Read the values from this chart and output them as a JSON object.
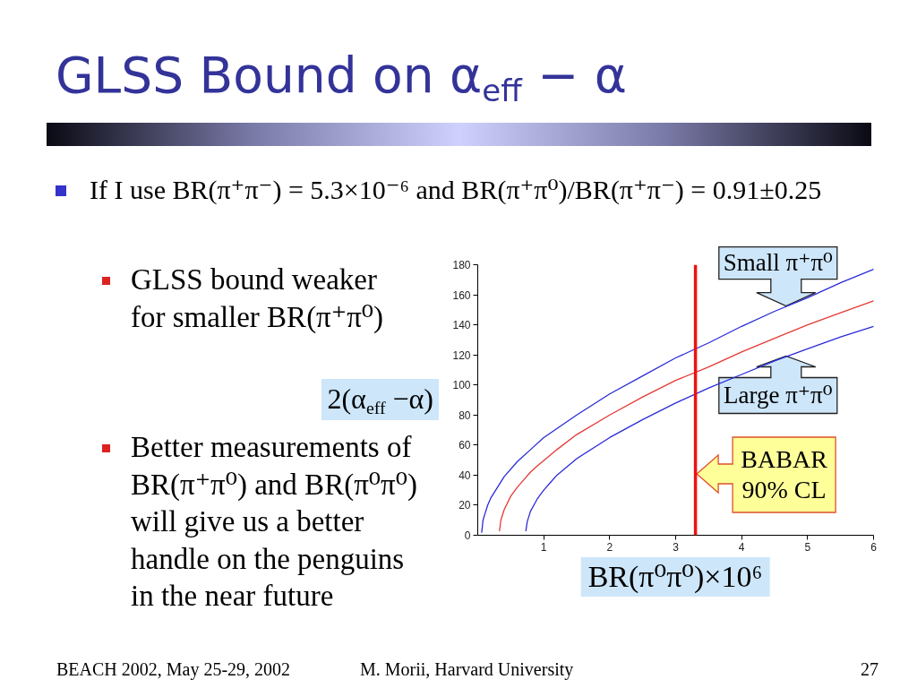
{
  "chart_data": {
    "type": "line",
    "title": "GLSS Bound on α$_{eff}$ − α",
    "xlabel": "BR(π⁰π⁰)×10⁶",
    "ylabel": "2(α$_{eff}$ −α)",
    "xlim": [
      0,
      6
    ],
    "xticks": [
      1,
      2,
      3,
      4,
      5,
      6
    ],
    "ylim": [
      0,
      180
    ],
    "yticks": [
      0,
      20,
      40,
      60,
      80,
      100,
      120,
      140,
      160,
      180
    ],
    "line_style": "solid",
    "series": [
      {
        "name": "Small π⁺π⁰",
        "color": "#2b2bd9",
        "x": [
          0.06,
          0.08,
          0.1,
          0.15,
          0.2,
          0.3,
          0.4,
          0.6,
          0.8,
          1,
          1.5,
          2,
          2.5,
          3,
          3.5,
          4,
          4.5,
          5,
          5.5,
          6
        ],
        "values": [
          2,
          10,
          13,
          20,
          25,
          32,
          39,
          49,
          57,
          65,
          80,
          94,
          106,
          118,
          128,
          139,
          149,
          158,
          168,
          177
        ]
      },
      {
        "color": "#e53935",
        "x": [
          0.33,
          0.35,
          0.4,
          0.5,
          0.6,
          0.7,
          0.8,
          0.9,
          1.2,
          1.5,
          2,
          2.5,
          3,
          3.5,
          4,
          4.5,
          5,
          5.5,
          6
        ],
        "values": [
          3,
          10,
          17,
          26,
          32,
          37,
          42,
          46,
          57,
          67,
          80,
          92,
          103,
          112,
          122,
          131,
          140,
          148,
          156
        ]
      },
      {
        "name": "Large π⁺π⁰",
        "color": "#2b2bd9",
        "x": [
          0.73,
          0.75,
          0.8,
          0.85,
          0.9,
          1,
          1.1,
          1.2,
          1.5,
          2,
          2.5,
          3,
          3.5,
          4,
          4.5,
          5,
          5.5,
          6
        ],
        "values": [
          3,
          9,
          16,
          20,
          24,
          30,
          35,
          40,
          51,
          65,
          77,
          88,
          98,
          107,
          116,
          124,
          132,
          139
        ]
      }
    ],
    "ref_lines": [
      {
        "axis": "x",
        "value": 3.3,
        "label": "BABAR\n90% CL",
        "color": "#ee1111"
      }
    ],
    "annotations": [
      "If I use BR(π⁺π⁻) = 5.3×10⁻⁶ and BR(π⁺π⁰)/BR(π⁺π⁻) = 0.91±0.25",
      "GLSS bound weaker\nfor smaller BR(π⁺π⁰)",
      "Better measurements of\nBR(π⁺π⁰) and BR(π⁰π⁰)\nwill give us a better\nhandle on the penguins\nin the near future",
      "BEACH 2002, May 25-29, 2002",
      "M. Morii, Harvard University",
      "27"
    ]
  }
}
